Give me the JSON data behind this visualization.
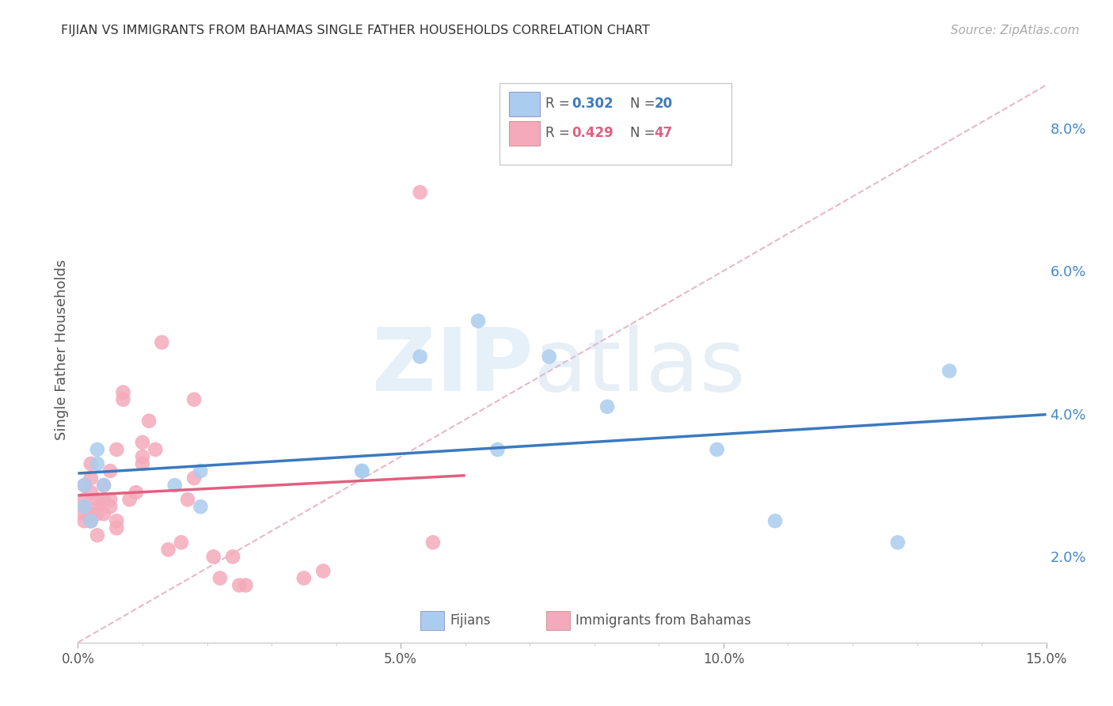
{
  "title": "FIJIAN VS IMMIGRANTS FROM BAHAMAS SINGLE FATHER HOUSEHOLDS CORRELATION CHART",
  "source": "Source: ZipAtlas.com",
  "ylabel": "Single Father Households",
  "xlim": [
    0.0,
    0.15
  ],
  "ylim": [
    0.008,
    0.09
  ],
  "xticks": [
    0.0,
    0.05,
    0.1,
    0.15
  ],
  "xminorticks": [
    0.01,
    0.02,
    0.03,
    0.04,
    0.06,
    0.07,
    0.08,
    0.09,
    0.11,
    0.12,
    0.13,
    0.14
  ],
  "yticks": [
    0.02,
    0.04,
    0.06,
    0.08
  ],
  "background_color": "#ffffff",
  "grid_color": "#e0e0e0",
  "blue_color": "#aaccee",
  "pink_color": "#f4aabb",
  "blue_line_color": "#3a7abf",
  "pink_line_color": "#e06080",
  "diag_line_color": "#e8b8c8",
  "legend_box_color": "#ffffff",
  "legend_border_color": "#cccccc",
  "bottom_legend_color": "#555555",
  "fijians_x": [
    0.001,
    0.001,
    0.002,
    0.003,
    0.003,
    0.004,
    0.015,
    0.019,
    0.019,
    0.044,
    0.044,
    0.053,
    0.062,
    0.065,
    0.073,
    0.082,
    0.099,
    0.108,
    0.127,
    0.135
  ],
  "fijians_y": [
    0.027,
    0.03,
    0.025,
    0.033,
    0.035,
    0.03,
    0.03,
    0.032,
    0.027,
    0.032,
    0.032,
    0.048,
    0.053,
    0.035,
    0.048,
    0.041,
    0.035,
    0.025,
    0.022,
    0.046
  ],
  "bahamas_x": [
    0.001,
    0.001,
    0.001,
    0.001,
    0.001,
    0.002,
    0.002,
    0.002,
    0.002,
    0.002,
    0.003,
    0.003,
    0.003,
    0.003,
    0.004,
    0.004,
    0.004,
    0.005,
    0.005,
    0.005,
    0.006,
    0.006,
    0.006,
    0.007,
    0.007,
    0.008,
    0.009,
    0.01,
    0.01,
    0.01,
    0.011,
    0.012,
    0.013,
    0.014,
    0.016,
    0.017,
    0.018,
    0.018,
    0.021,
    0.022,
    0.024,
    0.025,
    0.026,
    0.035,
    0.038,
    0.053,
    0.055
  ],
  "bahamas_y": [
    0.025,
    0.026,
    0.027,
    0.028,
    0.03,
    0.025,
    0.026,
    0.029,
    0.031,
    0.033,
    0.023,
    0.026,
    0.027,
    0.028,
    0.026,
    0.028,
    0.03,
    0.027,
    0.028,
    0.032,
    0.024,
    0.025,
    0.035,
    0.042,
    0.043,
    0.028,
    0.029,
    0.033,
    0.034,
    0.036,
    0.039,
    0.035,
    0.05,
    0.021,
    0.022,
    0.028,
    0.031,
    0.042,
    0.02,
    0.017,
    0.02,
    0.016,
    0.016,
    0.017,
    0.018,
    0.071,
    0.022
  ]
}
